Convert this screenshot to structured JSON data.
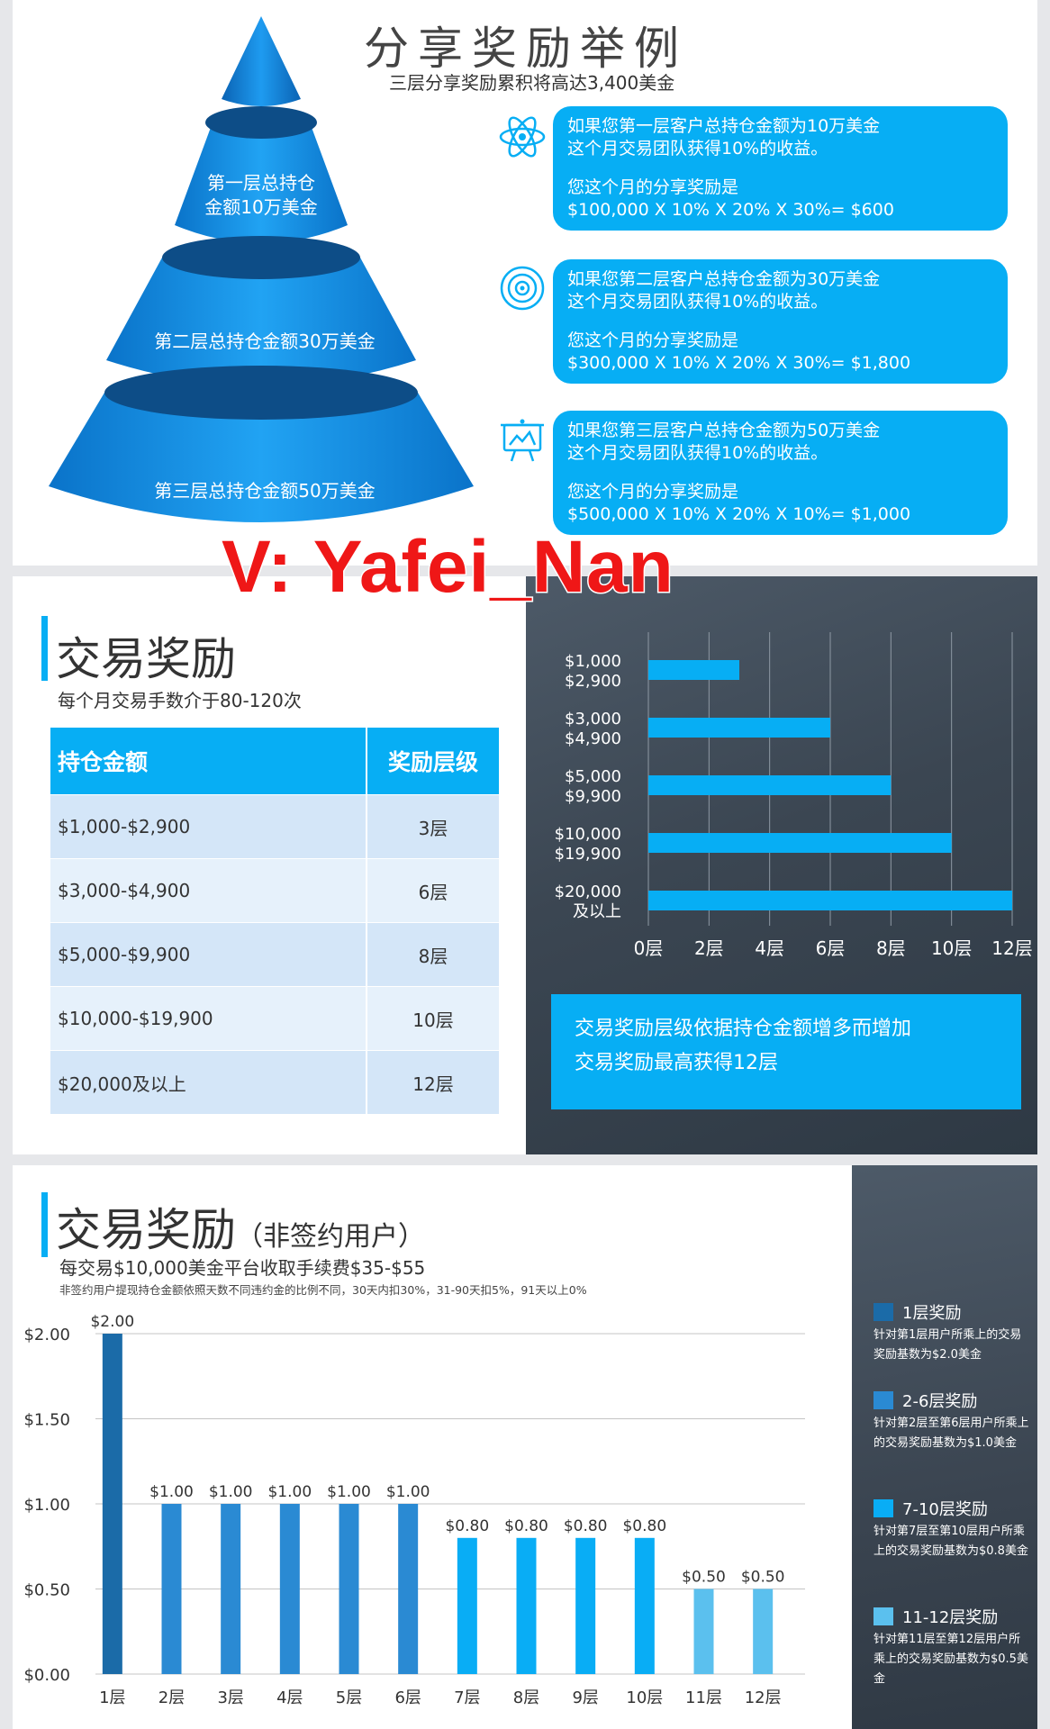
{
  "sharing": {
    "title": "分享奖励举例",
    "subtitle": "三层分享奖励累积将高达3,400美金",
    "tiers": [
      "第一层总持仓金额10万美金",
      "第二层总持仓金额30万美金",
      "第三层总持仓金额50万美金"
    ],
    "tier1_line1": "第一层总持仓",
    "tier1_line2": "金额10万美金",
    "callouts": [
      {
        "icon": "atom-icon",
        "line1": "如果您第一层客户总持仓金额为10万美金",
        "line2": "这个月交易团队获得10%的收益。",
        "line3": "您这个月的分享奖励是",
        "line4": "$100,000 X 10% X 20% X 30%= $600"
      },
      {
        "icon": "target-icon",
        "line1": "如果您第二层客户总持仓金额为30万美金",
        "line2": "这个月交易团队获得10%的收益。",
        "line3": "您这个月的分享奖励是",
        "line4": "$300,000 X 10% X 20% X 30%= $1,800"
      },
      {
        "icon": "presentation-board-icon",
        "line1": "如果您第三层客户总持仓金额为50万美金",
        "line2": "这个月交易团队获得10%的收益。",
        "line3": "您这个月的分享奖励是",
        "line4": "$500,000 X 10% X 20% X 10%= $1,000"
      }
    ]
  },
  "watermark": "V: Yafei_Nan",
  "trade": {
    "title": "交易奖励",
    "subtitle": "每个月交易手数介于80-120次",
    "table": {
      "headers": [
        "持仓金额",
        "奖励层级"
      ],
      "rows": [
        [
          "$1,000-$2,900",
          "3层"
        ],
        [
          "$3,000-$4,900",
          "6层"
        ],
        [
          "$5,000-$9,900",
          "8层"
        ],
        [
          "$10,000-$19,900",
          "10层"
        ],
        [
          "$20,000及以上",
          "12层"
        ]
      ]
    },
    "info_line1": "交易奖励层级依据持仓金额增多而增加",
    "info_line2": "交易奖励最高获得12层"
  },
  "nonsigned": {
    "title": "交易奖励",
    "title_suffix": "（非签约用户）",
    "subtitle": "每交易$10,000美金平台收取手续费$35-$55",
    "note": "非签约用户提现持仓金额依照天数不同违约金的比例不同，30天内扣30%，31-90天扣5%，91天以上0%",
    "legend": [
      {
        "title": "1层奖励",
        "desc": "针对第1层用户所乘上的交易奖励基数为$2.0美金",
        "color": "#1b6ba8"
      },
      {
        "title": "2-6层奖励",
        "desc": "针对第2层至第6层用户所乘上的交易奖励基数为$1.0美金",
        "color": "#2a8ad3"
      },
      {
        "title": "7-10层奖励",
        "desc": "针对第7层至第10层用户所乘上的交易奖励基数为$0.8美金",
        "color": "#09adf5"
      },
      {
        "title": "11-12层奖励",
        "desc": "针对第11层至第12层用户所乘上的交易奖励基数为$0.5美金",
        "color": "#5bc0ee"
      }
    ]
  },
  "chart_data": [
    {
      "type": "bar",
      "orientation": "horizontal",
      "categories": [
        "$1,000\n$2,900",
        "$3,000\n$4,900",
        "$5,000\n$9,900",
        "$10,000\n$19,900",
        "$20,000\n及以上"
      ],
      "values": [
        3,
        6,
        8,
        10,
        12
      ],
      "xticks": [
        "0层",
        "2层",
        "4层",
        "6层",
        "8层",
        "10层",
        "12层"
      ],
      "xlim": [
        0,
        12
      ],
      "grid": true,
      "color": "#07aef4"
    },
    {
      "type": "bar",
      "categories": [
        "1层",
        "2层",
        "3层",
        "4层",
        "5层",
        "6层",
        "7层",
        "8层",
        "9层",
        "10层",
        "11层",
        "12层"
      ],
      "values": [
        2.0,
        1.0,
        1.0,
        1.0,
        1.0,
        1.0,
        0.8,
        0.8,
        0.8,
        0.8,
        0.5,
        0.5
      ],
      "data_labels": [
        "$2.00",
        "$1.00",
        "$1.00",
        "$1.00",
        "$1.00",
        "$1.00",
        "$0.80",
        "$0.80",
        "$0.80",
        "$0.80",
        "$0.50",
        "$0.50"
      ],
      "yticks": [
        "$0.00",
        "$0.50",
        "$1.00",
        "$1.50",
        "$2.00"
      ],
      "ylim": [
        0,
        2
      ],
      "grid": true,
      "colors": [
        "#1b6ba8",
        "#2a8ad3",
        "#2a8ad3",
        "#2a8ad3",
        "#2a8ad3",
        "#2a8ad3",
        "#09adf5",
        "#09adf5",
        "#09adf5",
        "#09adf5",
        "#5bc0ee",
        "#5bc0ee"
      ]
    }
  ]
}
